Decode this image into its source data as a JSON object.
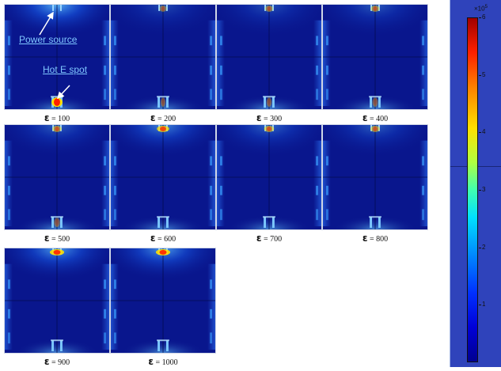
{
  "panels": [
    {
      "eps": "ε",
      "eq": " = 100",
      "hotspot": "bottom",
      "intensity": 1.0
    },
    {
      "eps": "ε",
      "eq": " = 200",
      "hotspot": "both",
      "intensity": 0.35
    },
    {
      "eps": "ε",
      "eq": " = 300",
      "hotspot": "both",
      "intensity": 0.4
    },
    {
      "eps": "ε",
      "eq": " = 400",
      "hotspot": "both",
      "intensity": 0.45
    },
    {
      "eps": "ε",
      "eq": " = 500",
      "hotspot": "both",
      "intensity": 0.5
    },
    {
      "eps": "ε",
      "eq": " = 600",
      "hotspot": "top",
      "intensity": 0.75
    },
    {
      "eps": "ε",
      "eq": " = 700",
      "hotspot": "top",
      "intensity": 0.55
    },
    {
      "eps": "ε",
      "eq": " = 800",
      "hotspot": "top",
      "intensity": 0.5
    },
    {
      "eps": "ε",
      "eq": " = 900",
      "hotspot": "top",
      "intensity": 0.9
    },
    {
      "eps": "ε",
      "eq": " = 1000",
      "hotspot": "top",
      "intensity": 0.9
    }
  ],
  "annotations": {
    "power_source": "Power source",
    "hot_spot": "Hot E spot"
  },
  "colorbar": {
    "scale_prefix": "×10",
    "scale_exp": "5",
    "ticks": [
      "6",
      "5",
      "4",
      "3",
      "2",
      "1"
    ],
    "min": 0,
    "max": 6
  },
  "colors": {
    "background": "#09168d",
    "hot": "#ff2000",
    "warm": "#ffe000",
    "glow": "#00b0ff"
  }
}
